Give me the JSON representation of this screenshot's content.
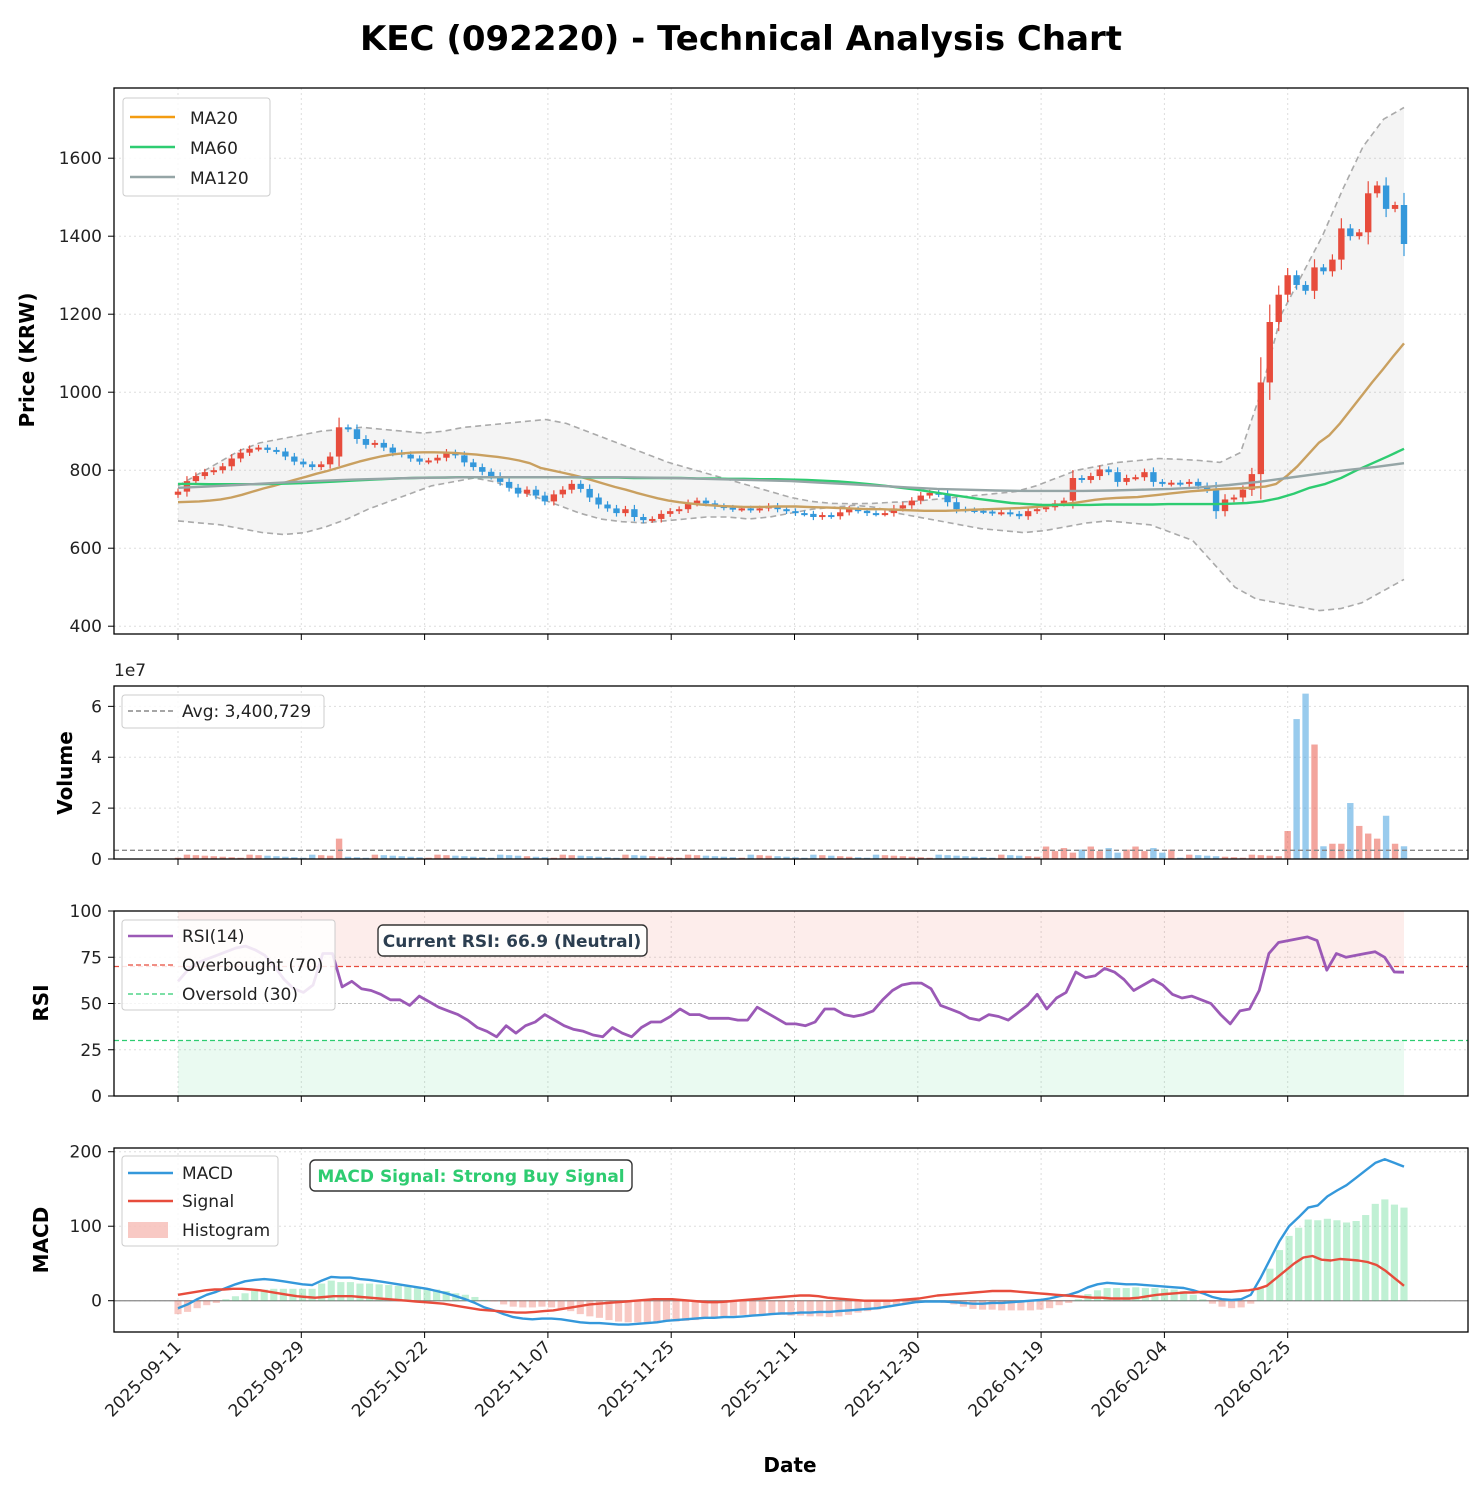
{
  "title": "KEC (092220) - Technical Analysis Chart",
  "colors": {
    "up": "#e74c3c",
    "down": "#3498db",
    "ma20": "#f39c12",
    "ma60": "#2ecc71",
    "ma120": "#95a5a6",
    "rsi": "#9b59b6",
    "macd": "#3498db",
    "signal": "#e74c3c",
    "hist_pos": "#2ecc71",
    "hist_neg": "#e74c3c"
  },
  "chart_data": [
    {
      "type": "candlestick",
      "ylabel": "Price (KRW)",
      "ylim": [
        380,
        1780
      ],
      "yticks": [
        400,
        600,
        800,
        1000,
        1200,
        1400,
        1600
      ],
      "legend": [
        "MA20",
        "MA60",
        "MA120"
      ],
      "legend_position": "top-left",
      "grid": true,
      "series_close": [
        745,
        772,
        785,
        795,
        800,
        810,
        830,
        845,
        855,
        858,
        852,
        848,
        835,
        822,
        815,
        808,
        815,
        835,
        910,
        905,
        880,
        865,
        870,
        858,
        845,
        840,
        830,
        822,
        825,
        832,
        845,
        838,
        820,
        808,
        796,
        785,
        770,
        755,
        740,
        750,
        735,
        720,
        738,
        750,
        765,
        752,
        730,
        712,
        702,
        690,
        700,
        680,
        672,
        675,
        688,
        695,
        700,
        715,
        722,
        715,
        708,
        704,
        700,
        702,
        698,
        702,
        708,
        700,
        695,
        690,
        688,
        680,
        685,
        682,
        692,
        700,
        696,
        690,
        688,
        690,
        702,
        710,
        722,
        735,
        742,
        738,
        718,
        700,
        698,
        696,
        694,
        690,
        692,
        688,
        682,
        695,
        700,
        705,
        715,
        722,
        780,
        775,
        785,
        802,
        795,
        770,
        780,
        782,
        795,
        770,
        765,
        768,
        765,
        770,
        760,
        750,
        695,
        725,
        730,
        750,
        790,
        1025,
        1180,
        1250,
        1300,
        1275,
        1260,
        1320,
        1310,
        1340,
        1420,
        1400,
        1410,
        1510,
        1530,
        1470,
        1480,
        1380
      ],
      "ma20": [
        718,
        719,
        720,
        722,
        725,
        730,
        737,
        745,
        753,
        760,
        768,
        776,
        783,
        791,
        798,
        806,
        814,
        822,
        829,
        835,
        840,
        843,
        845,
        846,
        846,
        845,
        844,
        842,
        840,
        837,
        834,
        830,
        825,
        818,
        806,
        800,
        794,
        788,
        781,
        773,
        765,
        757,
        750,
        742,
        735,
        728,
        722,
        718,
        715,
        712,
        710,
        708,
        707,
        706,
        706,
        706,
        707,
        707,
        707,
        706,
        705,
        704,
        703,
        702,
        701,
        700,
        700,
        699,
        698,
        697,
        696,
        696,
        696,
        697,
        698,
        699,
        700,
        701,
        702,
        703,
        705,
        707,
        710,
        713,
        716,
        720,
        724,
        727,
        729,
        730,
        731,
        734,
        737,
        740,
        743,
        746,
        748,
        750,
        752,
        753,
        754,
        756,
        758,
        765,
        785,
        810,
        840,
        870,
        890,
        920,
        955,
        990,
        1025,
        1058,
        1092,
        1125
      ],
      "ma60": [
        765,
        765,
        764,
        764,
        764,
        764,
        765,
        766,
        767,
        769,
        771,
        773,
        775,
        777,
        779,
        780,
        781,
        781,
        782,
        782,
        782,
        782,
        782,
        782,
        782,
        782,
        781,
        781,
        781,
        780,
        780,
        780,
        780,
        779,
        779,
        778,
        778,
        777,
        777,
        776,
        775,
        773,
        771,
        768,
        764,
        760,
        755,
        750,
        744,
        738,
        732,
        726,
        721,
        716,
        713,
        711,
        711,
        711,
        711,
        712,
        712,
        712,
        712,
        713,
        713,
        713,
        713,
        714,
        716,
        720,
        728,
        740,
        755,
        765,
        780,
        800,
        818,
        836,
        855
      ],
      "ma120": [
        755,
        758,
        762,
        766,
        770,
        773,
        776,
        778,
        780,
        781,
        782,
        782,
        782,
        782,
        782,
        782,
        781,
        780,
        778,
        776,
        774,
        772,
        768,
        764,
        760,
        756,
        752,
        750,
        748,
        747,
        747,
        747,
        748,
        750,
        752,
        756,
        762,
        770,
        780,
        790,
        800,
        808,
        818
      ],
      "bb_upper": [
        760,
        790,
        820,
        850,
        870,
        880,
        890,
        900,
        905,
        910,
        905,
        900,
        895,
        900,
        910,
        915,
        920,
        925,
        930,
        920,
        900,
        880,
        860,
        840,
        820,
        805,
        790,
        775,
        760,
        745,
        730,
        720,
        715,
        714,
        715,
        718,
        720,
        725,
        730,
        735,
        740,
        745,
        760,
        780,
        800,
        810,
        820,
        825,
        830,
        828,
        825,
        820,
        845,
        1000,
        1200,
        1300,
        1400,
        1520,
        1630,
        1700,
        1730
      ],
      "bb_lower": [
        670,
        665,
        660,
        650,
        640,
        635,
        640,
        655,
        675,
        700,
        720,
        740,
        760,
        770,
        780,
        770,
        750,
        730,
        710,
        690,
        675,
        668,
        665,
        670,
        675,
        680,
        680,
        675,
        680,
        690,
        700,
        705,
        710,
        705,
        690,
        680,
        670,
        660,
        650,
        645,
        640,
        645,
        655,
        665,
        670,
        665,
        660,
        640,
        620,
        560,
        500,
        470,
        460,
        450,
        440,
        445,
        460,
        490,
        520
      ]
    },
    {
      "type": "bar",
      "ylabel": "Volume",
      "scale_label": "1e7",
      "ylim": [
        0,
        6.8
      ],
      "yticks": [
        0,
        2,
        4,
        6
      ],
      "avg_label": "Avg: 3,400,729",
      "avg": 0.34,
      "legend_position": "top-left",
      "big_spikes": [
        1.1,
        5.5,
        6.5,
        4.5,
        0.5,
        0.6,
        0.6,
        2.2,
        1.3,
        1.0,
        0.8,
        1.7,
        0.6,
        0.5
      ]
    },
    {
      "type": "line",
      "ylabel": "RSI",
      "ylim": [
        0,
        100
      ],
      "yticks": [
        0,
        25,
        50,
        75,
        100
      ],
      "legend": [
        "RSI(14)",
        "Overbought (70)",
        "Oversold (30)"
      ],
      "annotation": "Current RSI: 66.9 (Neutral)",
      "values": [
        62,
        68,
        72,
        74,
        76,
        78,
        80,
        81,
        79,
        76,
        70,
        63,
        58,
        56,
        60,
        77,
        77,
        59,
        62,
        58,
        57,
        55,
        52,
        52,
        49,
        54,
        51,
        48,
        46,
        44,
        41,
        37,
        35,
        32,
        38,
        34,
        38,
        40,
        44,
        41,
        38,
        36,
        35,
        33,
        32,
        37,
        34,
        32,
        37,
        40,
        40,
        43,
        47,
        44,
        44,
        42,
        42,
        42,
        41,
        41,
        48,
        45,
        42,
        39,
        39,
        38,
        40,
        47,
        47,
        44,
        43,
        44,
        46,
        52,
        57,
        60,
        61,
        61,
        58,
        49,
        47,
        45,
        42,
        41,
        44,
        43,
        41,
        45,
        49,
        55,
        47,
        53,
        56,
        67,
        64,
        65,
        69,
        67,
        63,
        57,
        60,
        63,
        60,
        55,
        53,
        54,
        52,
        50,
        44,
        39,
        46,
        47,
        57,
        77,
        83,
        84,
        85,
        86,
        84,
        68,
        77,
        75,
        76,
        77,
        78,
        75,
        67,
        66.9
      ]
    },
    {
      "type": "line",
      "ylabel": "MACD",
      "ylim": [
        -42,
        205
      ],
      "yticks": [
        0,
        100,
        200
      ],
      "legend": [
        "MACD",
        "Signal",
        "Histogram"
      ],
      "annotation": "MACD Signal: Strong Buy Signal",
      "macd": [
        -10,
        -5,
        2,
        8,
        12,
        17,
        22,
        26,
        28,
        29,
        28,
        26,
        24,
        22,
        21,
        27,
        32,
        31,
        31,
        29,
        28,
        26,
        24,
        22,
        20,
        18,
        16,
        13,
        10,
        6,
        2,
        -3,
        -9,
        -13,
        -18,
        -22,
        -24,
        -25,
        -24,
        -24,
        -25,
        -27,
        -29,
        -30,
        -30,
        -31,
        -32,
        -32,
        -31,
        -30,
        -29,
        -27,
        -26,
        -25,
        -24,
        -23,
        -23,
        -22,
        -22,
        -21,
        -20,
        -19,
        -18,
        -17,
        -17,
        -16,
        -16,
        -15,
        -15,
        -14,
        -13,
        -12,
        -11,
        -10,
        -8,
        -6,
        -4,
        -2,
        -1,
        -1,
        -1,
        -2,
        -3,
        -4,
        -4,
        -3,
        -3,
        -2,
        -1,
        0,
        1,
        3,
        6,
        8,
        12,
        18,
        22,
        24,
        23,
        22,
        22,
        21,
        20,
        19,
        18,
        17,
        14,
        10,
        5,
        2,
        1,
        2,
        8,
        30,
        55,
        80,
        100,
        112,
        125,
        128,
        140,
        148,
        155,
        165,
        175,
        185,
        190,
        185,
        180
      ],
      "signal": [
        8,
        10,
        12,
        14,
        15,
        15,
        16,
        16,
        15,
        14,
        12,
        10,
        8,
        6,
        5,
        4,
        5,
        6,
        6,
        6,
        5,
        4,
        3,
        2,
        1,
        0,
        -1,
        -2,
        -3,
        -4,
        -6,
        -8,
        -10,
        -12,
        -13,
        -14,
        -15,
        -16,
        -16,
        -15,
        -14,
        -13,
        -11,
        -9,
        -7,
        -5,
        -4,
        -3,
        -2,
        -1,
        0,
        1,
        2,
        2,
        2,
        1,
        0,
        -1,
        -2,
        -2,
        -1,
        0,
        1,
        2,
        3,
        4,
        5,
        6,
        7,
        7,
        6,
        4,
        3,
        2,
        1,
        0,
        0,
        0,
        0,
        1,
        2,
        3,
        5,
        7,
        8,
        9,
        10,
        11,
        12,
        13,
        13,
        13,
        12,
        11,
        10,
        9,
        8,
        7,
        6,
        5,
        4,
        4,
        3,
        3,
        3,
        4,
        6,
        8,
        9,
        10,
        11,
        11,
        12,
        12,
        12,
        12,
        13,
        14,
        16,
        20,
        30,
        40,
        50,
        58,
        60,
        55,
        54,
        56,
        55,
        54,
        52,
        48,
        40,
        30,
        20
      ]
    },
    {
      "type": "axis",
      "xlabel": "Date",
      "xticks": [
        "2025-09-11",
        "2025-09-29",
        "2025-10-22",
        "2025-11-07",
        "2025-11-25",
        "2025-12-11",
        "2025-12-30",
        "2026-01-19",
        "2026-02-04",
        "2026-02-25"
      ]
    }
  ]
}
